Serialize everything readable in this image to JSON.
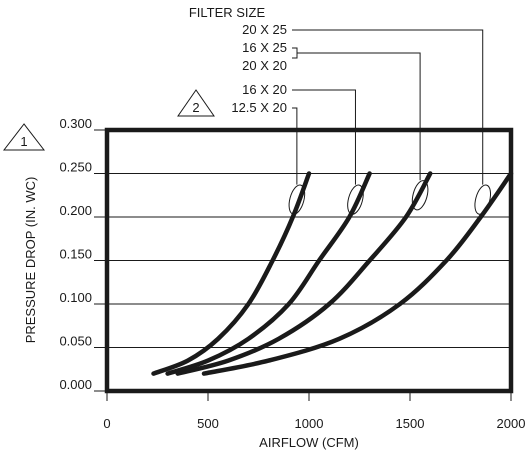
{
  "chart_data": {
    "type": "line",
    "title": "",
    "xlabel": "AIRFLOW (CFM)",
    "ylabel": "PRESSURE DROP (IN. WC)",
    "xlim": [
      0,
      2000
    ],
    "ylim": [
      0,
      0.3
    ],
    "x_ticks": [
      "0",
      "500",
      "1000",
      "1500",
      "2000"
    ],
    "y_ticks": [
      "0.000",
      "0.050",
      "0.100",
      "0.150",
      "0.200",
      "0.250",
      "0.300"
    ],
    "y_tick_values": [
      0,
      0.05,
      0.1,
      0.15,
      0.2,
      0.25,
      0.3
    ],
    "x_tick_values": [
      0,
      500,
      1000,
      1500,
      2000
    ],
    "grid": "horizontal",
    "legend_title": "FILTER SIZE",
    "series": [
      {
        "name": "12.5 X 20",
        "x": [
          230,
          400,
          550,
          700,
          820,
          920,
          1000
        ],
        "y": [
          0.02,
          0.035,
          0.06,
          0.1,
          0.15,
          0.2,
          0.25
        ]
      },
      {
        "name": "16 X 20",
        "x": [
          300,
          500,
          700,
          900,
          1050,
          1200,
          1300
        ],
        "y": [
          0.02,
          0.035,
          0.06,
          0.1,
          0.15,
          0.2,
          0.25
        ]
      },
      {
        "name": "16 X 25 / 20 X 20",
        "x": [
          350,
          600,
          850,
          1100,
          1300,
          1480,
          1600
        ],
        "y": [
          0.02,
          0.035,
          0.06,
          0.1,
          0.15,
          0.2,
          0.25
        ]
      },
      {
        "name": "20 X 25",
        "x": [
          480,
          800,
          1150,
          1450,
          1680,
          1850,
          2000
        ],
        "y": [
          0.02,
          0.035,
          0.06,
          0.1,
          0.15,
          0.2,
          0.25
        ]
      }
    ],
    "callout_labels": [
      "20 X 25",
      "16 X 25",
      "20 X 20",
      "16 X 20",
      "12.5 X 20"
    ],
    "callout_targets": [
      {
        "label_index": 0,
        "x": 1860,
        "y": 0.22
      },
      {
        "label_index": 1,
        "x": 1550,
        "y": 0.225
      },
      {
        "label_index": 3,
        "x": 1230,
        "y": 0.22
      },
      {
        "label_index": 4,
        "x": 940,
        "y": 0.22
      }
    ],
    "notes": [
      {
        "marker": "1",
        "attached_to": "y-axis-top"
      },
      {
        "marker": "2",
        "attached_to": "12.5 X 20"
      }
    ]
  }
}
